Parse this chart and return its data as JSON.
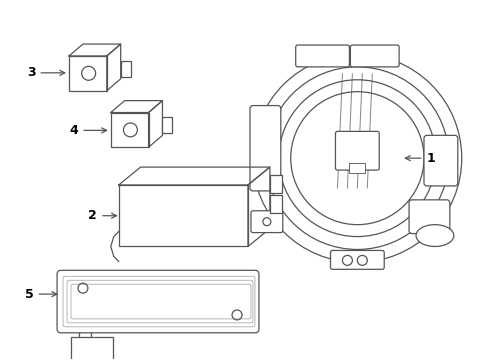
{
  "background_color": "#ffffff",
  "line_color": "#555555",
  "label_color": "#000000",
  "fig_width": 4.9,
  "fig_height": 3.6,
  "dpi": 100
}
